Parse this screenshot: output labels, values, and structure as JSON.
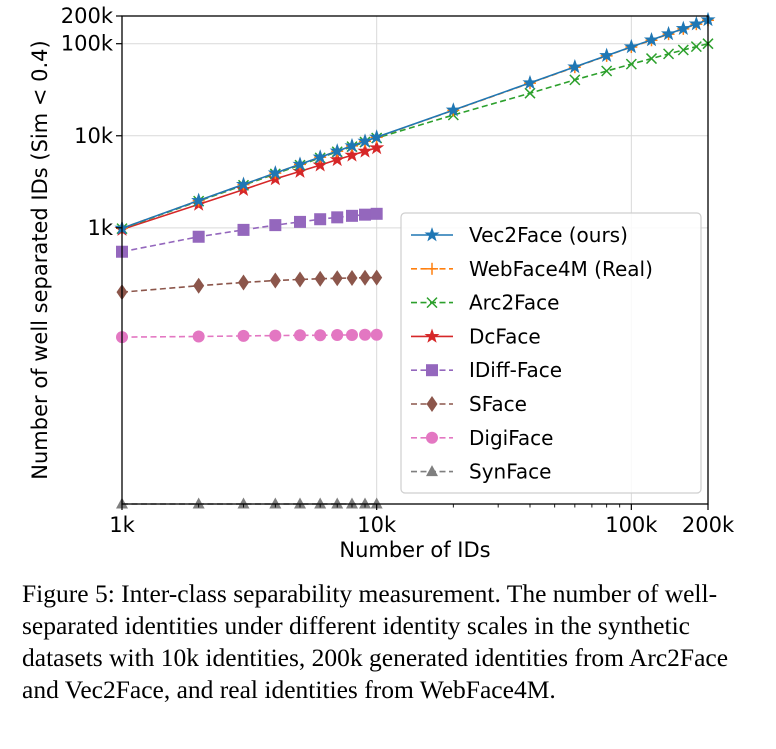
{
  "chart_data": {
    "type": "line",
    "title": "",
    "xlabel": "Number of IDs",
    "ylabel": "Number of well separated IDs (Sim < 0.4)",
    "xscale": "log",
    "yscale": "log",
    "xlim": [
      1000,
      200000
    ],
    "ylim": [
      1,
      200000
    ],
    "grid": true,
    "legend_position": "lower-right",
    "x_ticks": [
      {
        "value": 1000,
        "label": "1k"
      },
      {
        "value": 10000,
        "label": "10k"
      },
      {
        "value": 100000,
        "label": "100k"
      },
      {
        "value": 200000,
        "label": "200k"
      }
    ],
    "y_ticks": [
      {
        "value": 1000,
        "label": "1k"
      },
      {
        "value": 10000,
        "label": "10k"
      },
      {
        "value": 100000,
        "label": "100k"
      },
      {
        "value": 200000,
        "label": "200k"
      }
    ],
    "series": [
      {
        "name": "Vec2Face (ours)",
        "color": "#1f77b4",
        "marker": "star",
        "dash": "solid",
        "x": [
          1000,
          2000,
          3000,
          4000,
          5000,
          6000,
          7000,
          8000,
          9000,
          10000,
          20000,
          40000,
          60000,
          80000,
          100000,
          120000,
          140000,
          160000,
          180000,
          200000
        ],
        "y": [
          990,
          1980,
          2960,
          3940,
          4900,
          5860,
          6820,
          7780,
          8720,
          9650,
          19000,
          37600,
          56000,
          74300,
          92500,
          110000,
          128000,
          146000,
          164000,
          182000
        ]
      },
      {
        "name": "WebFace4M (Real)",
        "color": "#ff7f0e",
        "marker": "plus",
        "dash": "dashed",
        "x": [
          1000,
          2000,
          3000,
          4000,
          5000,
          6000,
          7000,
          8000,
          9000,
          10000,
          20000,
          40000,
          60000,
          80000,
          100000,
          120000,
          140000,
          160000,
          180000,
          200000
        ],
        "y": [
          990,
          1975,
          2950,
          3930,
          4890,
          5850,
          6800,
          7760,
          8700,
          9620,
          18900,
          37300,
          55600,
          73800,
          92000,
          109000,
          127000,
          145000,
          163000,
          180000
        ]
      },
      {
        "name": "Arc2Face",
        "color": "#2ca02c",
        "marker": "x",
        "dash": "dashed",
        "x": [
          1000,
          2000,
          3000,
          4000,
          5000,
          6000,
          7000,
          8000,
          9000,
          10000,
          20000,
          40000,
          60000,
          80000,
          100000,
          120000,
          140000,
          160000,
          180000,
          200000
        ],
        "y": [
          980,
          1950,
          2900,
          3850,
          4800,
          5750,
          6700,
          7620,
          8550,
          9450,
          16800,
          29000,
          40500,
          50500,
          60000,
          69000,
          77500,
          85500,
          93000,
          100000
        ]
      },
      {
        "name": "DcFace",
        "color": "#d62728",
        "marker": "star",
        "dash": "solid",
        "x": [
          1000,
          2000,
          3000,
          4000,
          5000,
          6000,
          7000,
          8000,
          9000,
          10000
        ],
        "y": [
          960,
          1800,
          2600,
          3400,
          4100,
          4800,
          5500,
          6150,
          6800,
          7400
        ]
      },
      {
        "name": "IDiff-Face",
        "color": "#9467bd",
        "marker": "square",
        "dash": "dashed",
        "x": [
          1000,
          2000,
          3000,
          4000,
          5000,
          6000,
          7000,
          8000,
          9000,
          10000
        ],
        "y": [
          550,
          800,
          950,
          1070,
          1160,
          1240,
          1300,
          1350,
          1390,
          1420
        ]
      },
      {
        "name": "SFace",
        "color": "#8c564b",
        "marker": "diamond",
        "dash": "dashed",
        "x": [
          1000,
          2000,
          3000,
          4000,
          5000,
          6000,
          7000,
          8000,
          9000,
          10000
        ],
        "y": [
          200,
          235,
          255,
          268,
          275,
          280,
          283,
          285,
          287,
          288
        ]
      },
      {
        "name": "DigiFace",
        "color": "#e377c2",
        "marker": "circle",
        "dash": "dashed",
        "x": [
          1000,
          2000,
          3000,
          4000,
          5000,
          6000,
          7000,
          8000,
          9000,
          10000
        ],
        "y": [
          65,
          66,
          67,
          67.5,
          68,
          68,
          68.5,
          68.5,
          69,
          69
        ]
      },
      {
        "name": "SynFace",
        "color": "#7f7f7f",
        "marker": "triangle",
        "dash": "dashed",
        "x": [
          1000,
          2000,
          3000,
          4000,
          5000,
          6000,
          7000,
          8000,
          9000,
          10000
        ],
        "y": [
          1,
          1,
          1,
          1,
          1,
          1,
          1,
          1,
          1,
          1
        ]
      }
    ]
  },
  "caption": "Figure 5: Inter-class separability measurement. The number of well-separated identities under different identity scales in the synthetic datasets with 10k identities, 200k generated identities from Arc2Face and Vec2Face, and real identities from WebFace4M."
}
